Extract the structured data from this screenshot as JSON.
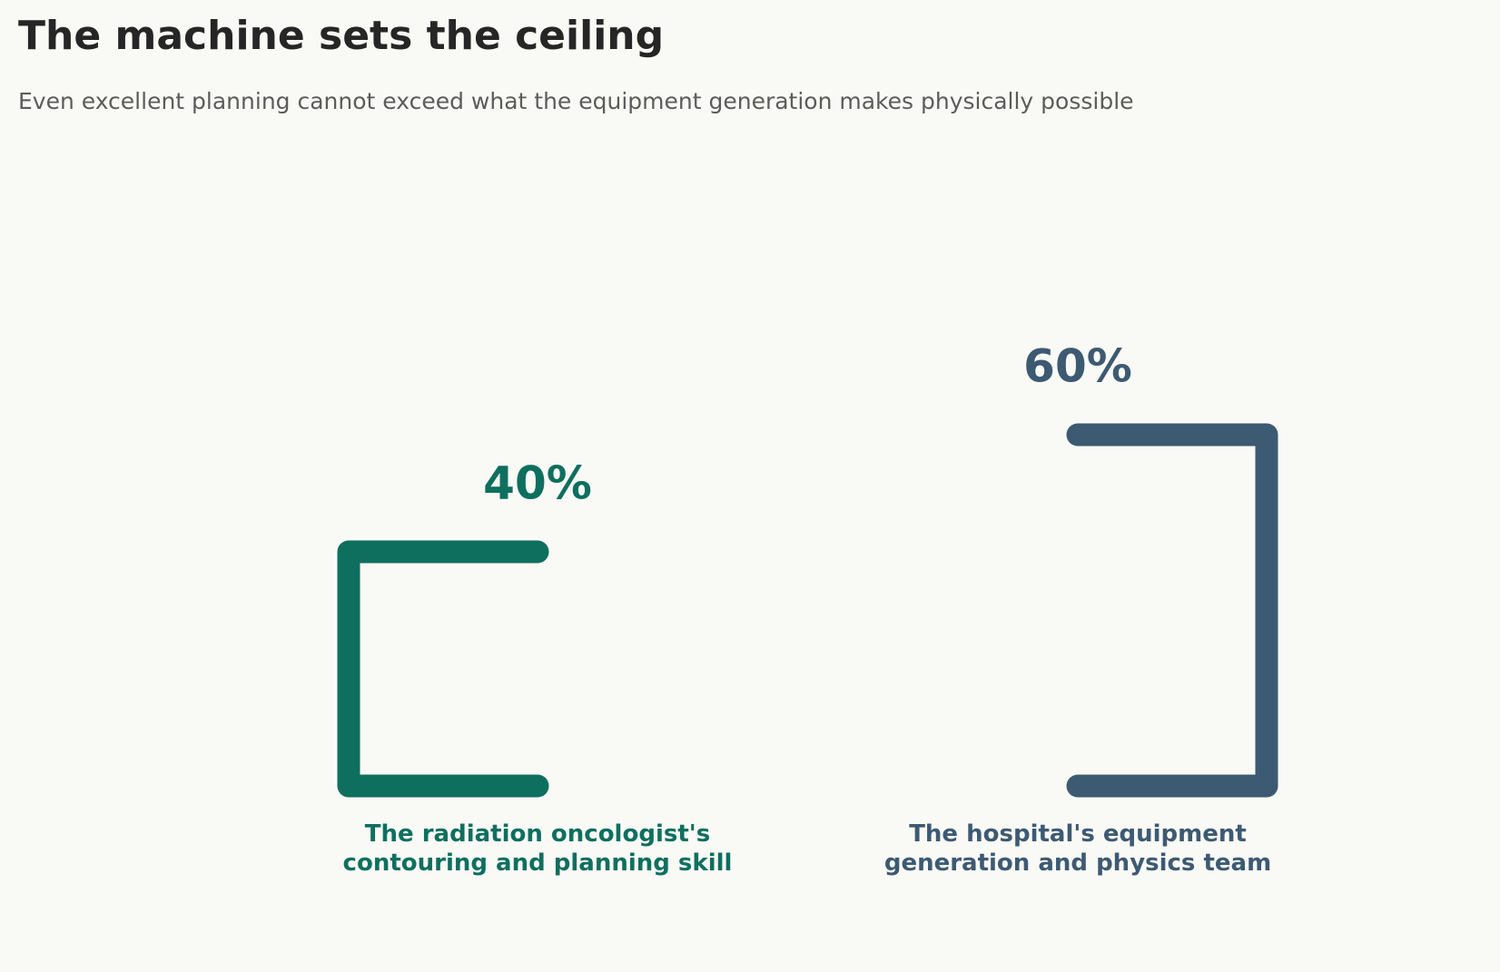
{
  "chart_data": {
    "type": "bracket",
    "title": "The machine sets the ceiling",
    "subtitle": "Even excellent planning cannot exceed what the equipment generation makes physically possible",
    "categories": [
      [
        "The radiation oncologist's",
        "contouring and planning skill"
      ],
      [
        "The hospital's equipment",
        "generation and physics team"
      ]
    ],
    "values": [
      40,
      60
    ],
    "value_labels": [
      "40%",
      "60%"
    ],
    "colors": [
      "#0e6f5f",
      "#3d5a73"
    ]
  }
}
